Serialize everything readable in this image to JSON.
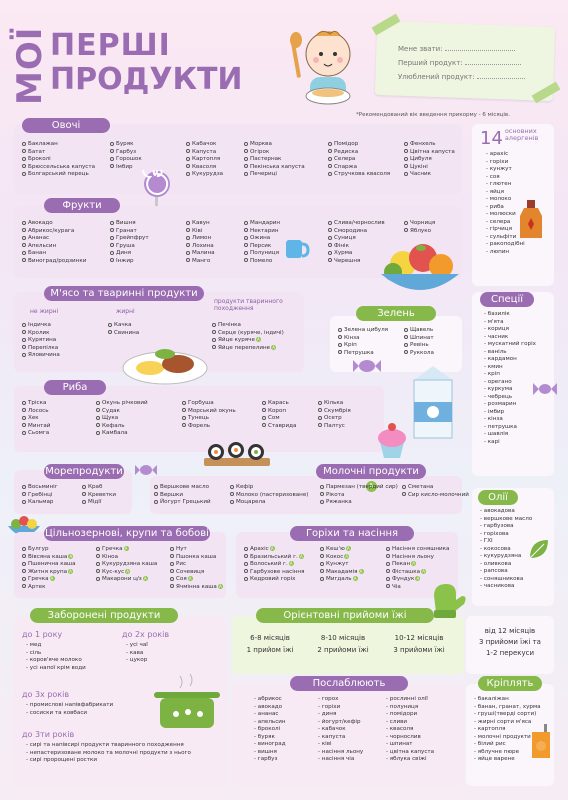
{
  "header": {
    "title_moi": "МОЇ",
    "title_pershi": "ПЕРШІ",
    "title_produkty": "ПРОДУКТИ",
    "card_name_label": "Мене звати:",
    "card_first_label": "Перший продукт:",
    "card_fav_label": "Улюблений продукт:",
    "note": "*Рекомендований вік введення прикорму - 6 місяців."
  },
  "vegetables": {
    "title": "Овочі",
    "cols": [
      [
        "Баклажан",
        "Батат",
        "Броколі",
        "Брюссельська капуста",
        "Болгарський перець"
      ],
      [
        "Буряк",
        "Гарбуз",
        "Горошок",
        "Імбир"
      ],
      [
        "Кабачок",
        "Капуста",
        "Картопля",
        "Квасоля",
        "Кукурудза"
      ],
      [
        "Морква",
        "Огірок",
        "Пастернак",
        "Пекінська капуста",
        "Печериці"
      ],
      [
        "Помідор",
        "Редиска",
        "Селера",
        "Спаржа",
        "Стручкова квасоля"
      ],
      [
        "Фенхель",
        "Цвітна капуста",
        "Цибуля",
        "Цукіні",
        "Часник"
      ]
    ]
  },
  "fruits": {
    "title": "Фрукти",
    "cols": [
      [
        "Авокадо",
        "Абрикос/курага",
        "Ананас",
        "Апельсин",
        "Банан",
        "Виноград/родзинки"
      ],
      [
        "Вишня",
        "Гранат",
        "Грейпфрут",
        "Груша",
        "Диня",
        "Інжир"
      ],
      [
        "Кавун",
        "Ківі",
        "Лимон",
        "Лохина",
        "Малина",
        "Манго"
      ],
      [
        "Мандарин",
        "Нектарин",
        "Ожина",
        "Персик",
        "Полуниця",
        "Помело"
      ],
      [
        "Слива/чорнослив",
        "Смородина",
        "Суниця",
        "Фінік",
        "Хурма",
        "Черешня"
      ],
      [
        "Чорниця",
        "Яблуко"
      ]
    ]
  },
  "meat": {
    "title": "М'ясо та тваринні продукти",
    "sub1": "не жирні",
    "sub2": "жирні",
    "sub3": "продукти тваринного походження",
    "col1": [
      "Індичка",
      "Кролик",
      "Курятина",
      "Перепілка",
      "Яловичина"
    ],
    "col2": [
      "Качка",
      "Свинина"
    ],
    "col3": [
      "Печінка",
      "Серце (куряче, індичі)",
      "Яйце куряче",
      "Яйце перепелине"
    ]
  },
  "greens": {
    "title": "Зелень",
    "col1": [
      "Зелена цибуля",
      "Кінза",
      "Крiп",
      "Петрушка"
    ],
    "col2": [
      "Щавель",
      "Шпинат",
      "Ревінь",
      "Руккола"
    ]
  },
  "fish": {
    "title": "Риба",
    "cols": [
      [
        "Тріска",
        "Лосось",
        "Хек",
        "Минтай",
        "Сьомга"
      ],
      [
        "Окунь річковий",
        "Судак",
        "Щука",
        "Кефаль",
        "Камбала"
      ],
      [
        "Горбуша",
        "Морський окунь",
        "Тунець",
        "Форель"
      ],
      [
        "Карась",
        "Короп",
        "Сом",
        "Ставрида"
      ],
      [
        "Кілька",
        "Скумбрія",
        "Осетр",
        "Палтус"
      ]
    ]
  },
  "seafood": {
    "title": "Морепродукти",
    "col1": [
      "Восьминіг",
      "Гребінці",
      "Кальмар"
    ],
    "col2": [
      "Краб",
      "Креветки",
      "Мідії"
    ]
  },
  "dairy": {
    "title": "Молочні продукти",
    "col1": [
      "Вершкове масло",
      "Вершки",
      "Йогурт Грецький"
    ],
    "col2": [
      "Кефір",
      "Молоко (пастеризоване)",
      "Моцарела"
    ],
    "col3": [
      "Пармезан (твердий сир)",
      "Рікота",
      "Ряжанка"
    ],
    "col4": [
      "Сметана",
      "Сир кисло-молочний"
    ]
  },
  "grains": {
    "title": "Цільнозернові, крупи та бобові",
    "col1": [
      "Булгур",
      "Вівсяна каша",
      "Пшенична каша",
      "Житня крупа",
      "Гречка",
      "Артек"
    ],
    "col2": [
      "Гречка",
      "Кіноа",
      "Кукурудзяна каша",
      "Кус-кус",
      "Макарони ц/з"
    ],
    "col3": [
      "Нут",
      "Пшонка каша",
      "Рис",
      "Сочевиця",
      "Соя",
      "Ячмінна каша"
    ]
  },
  "nuts": {
    "title": "Горіхи та насіння",
    "col1": [
      "Арахіс",
      "Бразильський г.",
      "Волоський г.",
      "Гарбузове насіння",
      "Кедровий горіх"
    ],
    "col2": [
      "Кеш'ю",
      "Кокос",
      "Кунжут",
      "Макадамія",
      "Мигдаль"
    ],
    "col3": [
      "Насіння соняшника",
      "Насіння льону",
      "Пекан",
      "Фісташка",
      "Фундук",
      "Чіа"
    ]
  },
  "allergens": {
    "num": "14",
    "title": "основних алергенів",
    "items": [
      "арахіс",
      "горіхи",
      "кунжут",
      "соя",
      "глютен",
      "яйця",
      "молоко",
      "риба",
      "молюски",
      "селера",
      "гірчиця",
      "сульфіти",
      "ракоподібні",
      "люпин"
    ]
  },
  "spices": {
    "title": "Спеції",
    "items": [
      "базилік",
      "м'ята",
      "кориця",
      "часник",
      "мускатний горіх",
      "ваніль",
      "кардамон",
      "кмин",
      "кріп",
      "орегано",
      "куркума",
      "чебрець",
      "розмарин",
      "імбир",
      "кінза",
      "петрушка",
      "шавлія",
      "карі"
    ]
  },
  "oils": {
    "title": "Олії",
    "items": [
      "авокадова",
      "вершкове масло",
      "гарбузова",
      "горіхова",
      "ГХІ",
      "кокосова",
      "кукурудзяна",
      "оливкова",
      "рапсова",
      "соняшникова",
      "часникова"
    ]
  },
  "forbidden": {
    "title": "Заборонені продукти",
    "to1_title": "до 1 року",
    "to1": [
      "мед",
      "сіль",
      "коров'яче молоко",
      "усі напої крім води"
    ],
    "to2_title": "до 2х років",
    "to2": [
      "усі чаї",
      "кава",
      "цукор"
    ],
    "to3_title": "до 3х років",
    "to3": [
      "промислові напівфабрикати",
      "сосиски та ковбаси"
    ],
    "to5_title": "до 3ти років",
    "to5": [
      "сирі та напівсирі продукти тваринного походження",
      "непастеризоване молоко та молочні продукти з нього",
      "сирі пророщені ростки"
    ]
  },
  "meals": {
    "title": "Орієнтовні прийоми їжі",
    "g1_age": "6-8 місяців",
    "g1_val": "1 прийом їжі",
    "g2_age": "8-10 місяців",
    "g2_val": "2 прийоми їжі",
    "g3_age": "10-12 місяців",
    "g3_val": "3 прийоми їжі",
    "g4_age": "від 12 місяців",
    "g4_val": "3 прийоми їжі та 1-2 перекуси"
  },
  "laxative": {
    "title": "Послаблюють",
    "col1": [
      "абрикос",
      "авокадо",
      "ананас",
      "апельсин",
      "броколі",
      "буряк",
      "виноград",
      "вишня",
      "гарбуз"
    ],
    "col2": [
      "горох",
      "горіхи",
      "диня",
      "йогурт/кефір",
      "кабачок",
      "капуста",
      "ківі",
      "насіння льону",
      "насіння чіа"
    ],
    "col3": [
      "рослинні олії",
      "полуниця",
      "помідори",
      "сливи",
      "квасоля",
      "чорнослив",
      "шпинат",
      "цвітна капуста",
      "яблука свіжі"
    ]
  },
  "binding": {
    "title": "Кріплять",
    "items": [
      "бакаліжан",
      "банан, гранат, хурма",
      "груші(тверді сорти)",
      "жирні сорти м'яса",
      "картопля",
      "молочні продукти",
      "білий рис",
      "яблучне пюре",
      "яйце варене"
    ]
  },
  "colors": {
    "purple": "#9a6cb1",
    "green": "#86b84a",
    "panel": "#f3e4f4"
  }
}
